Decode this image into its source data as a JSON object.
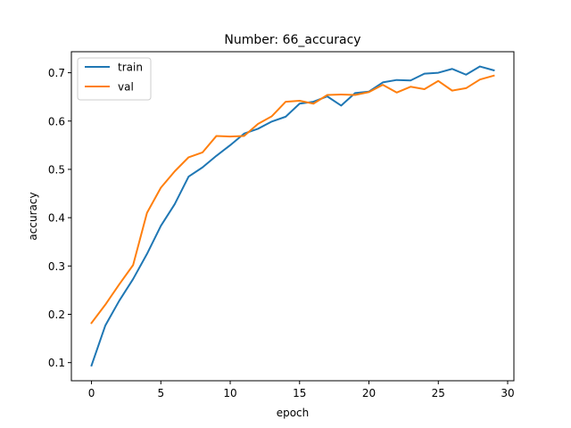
{
  "chart_data": {
    "type": "line",
    "title": "Number: 66_accuracy",
    "xlabel": "epoch",
    "ylabel": "accuracy",
    "xlim": [
      -1.45,
      30.45
    ],
    "ylim": [
      0.0625,
      0.7435
    ],
    "xticks": [
      0,
      5,
      10,
      15,
      20,
      25,
      30
    ],
    "yticks": [
      0.1,
      0.2,
      0.3,
      0.4,
      0.5,
      0.6,
      0.7
    ],
    "grid": false,
    "legend_position": "top-left",
    "x": [
      0,
      1,
      2,
      3,
      4,
      5,
      6,
      7,
      8,
      9,
      10,
      11,
      12,
      13,
      14,
      15,
      16,
      17,
      18,
      19,
      20,
      21,
      22,
      23,
      24,
      25,
      26,
      27,
      28,
      29
    ],
    "series": [
      {
        "name": "train",
        "color": "#1f77b4",
        "values": [
          0.094,
          0.177,
          0.228,
          0.273,
          0.325,
          0.383,
          0.428,
          0.485,
          0.504,
          0.528,
          0.55,
          0.574,
          0.584,
          0.599,
          0.609,
          0.636,
          0.64,
          0.651,
          0.632,
          0.658,
          0.661,
          0.68,
          0.685,
          0.684,
          0.698,
          0.7,
          0.708,
          0.696,
          0.713,
          0.705
        ]
      },
      {
        "name": "val",
        "color": "#ff7f0e",
        "values": [
          0.182,
          0.22,
          0.262,
          0.302,
          0.41,
          0.462,
          0.496,
          0.525,
          0.535,
          0.569,
          0.568,
          0.569,
          0.594,
          0.61,
          0.64,
          0.642,
          0.636,
          0.654,
          0.655,
          0.654,
          0.66,
          0.675,
          0.659,
          0.671,
          0.666,
          0.683,
          0.663,
          0.668,
          0.686,
          0.694
        ]
      }
    ]
  }
}
